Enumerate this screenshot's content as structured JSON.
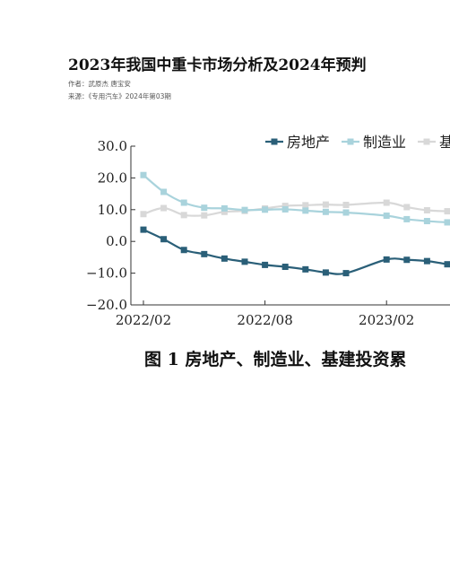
{
  "document": {
    "title": "2023年我国中重卡市场分析及2024年预判",
    "author": "作者：武原杰 唐宝安",
    "source": "来源：《专用汽车》2024年第03期",
    "figure_caption": "图 1  房地产、制造业、基建投资累"
  },
  "chart_data": {
    "type": "line",
    "title": "",
    "xlabel": "",
    "ylabel": "",
    "ylim": [
      -20,
      30
    ],
    "yticks": [
      "30.0",
      "20.0",
      "10.0",
      "0.0",
      "−10.0",
      "−20.0"
    ],
    "xticks": [
      "2022/02",
      "2022/08",
      "2023/02"
    ],
    "x": [
      "2022/02",
      "2022/03",
      "2022/04",
      "2022/05",
      "2022/06",
      "2022/07",
      "2022/08",
      "2022/09",
      "2022/10",
      "2022/11",
      "2022/12",
      "2023/02",
      "2023/03",
      "2023/04",
      "2023/05"
    ],
    "legend_position": "top-right",
    "grid": false,
    "series": [
      {
        "name": "房地产",
        "color": "#2a5f78",
        "marker": "square",
        "values": [
          3.7,
          0.7,
          -2.7,
          -4.0,
          -5.4,
          -6.4,
          -7.4,
          -8.0,
          -8.8,
          -9.8,
          -10.0,
          -5.7,
          -5.8,
          -6.2,
          -7.2
        ]
      },
      {
        "name": "制造业",
        "color": "#a9d3dc",
        "marker": "square",
        "values": [
          20.9,
          15.6,
          12.2,
          10.6,
          10.4,
          9.9,
          10.0,
          10.1,
          9.7,
          9.3,
          9.1,
          8.1,
          7.0,
          6.4,
          6.0
        ]
      },
      {
        "name": "基",
        "color": "#d8d8d8",
        "marker": "square",
        "values": [
          8.6,
          10.5,
          8.3,
          8.2,
          9.3,
          9.6,
          10.4,
          11.2,
          11.4,
          11.6,
          11.5,
          12.2,
          10.8,
          9.8,
          9.5
        ]
      }
    ]
  }
}
